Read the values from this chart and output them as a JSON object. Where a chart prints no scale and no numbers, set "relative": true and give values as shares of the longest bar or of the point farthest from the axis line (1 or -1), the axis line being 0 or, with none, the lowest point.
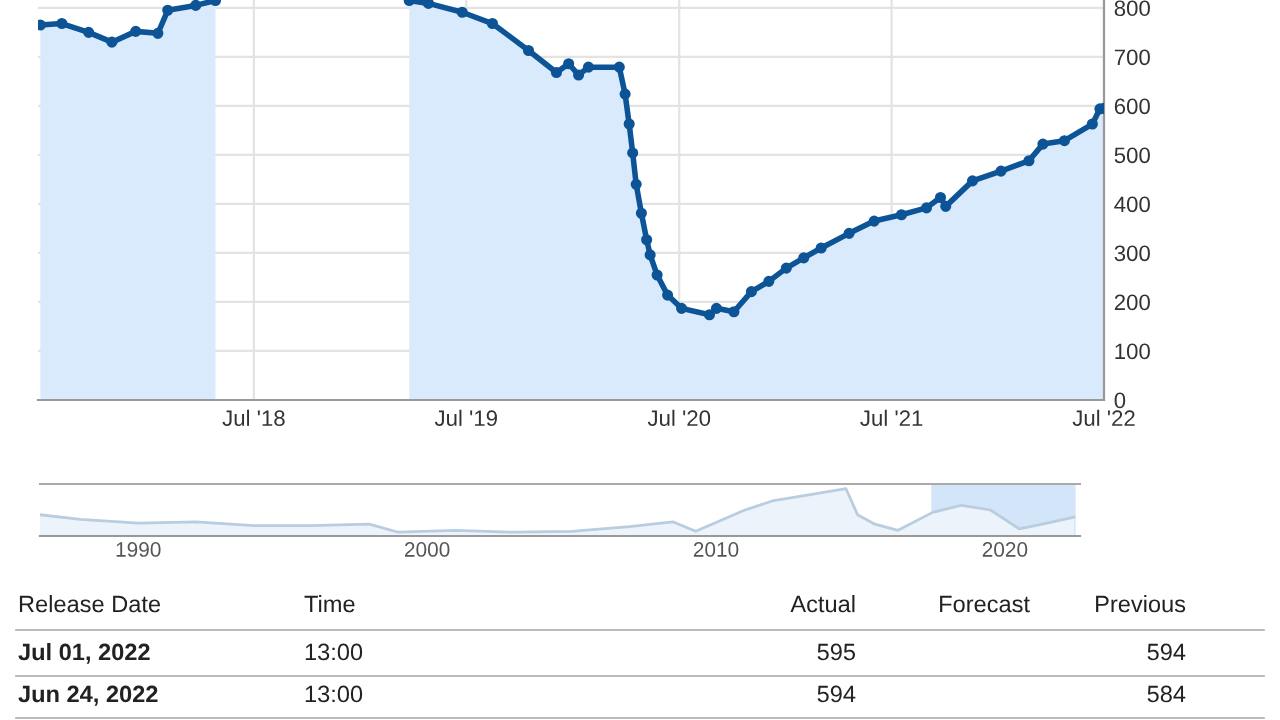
{
  "chart_data": [
    {
      "type": "area",
      "x": [
        "2017-06-29",
        "2017-08-05",
        "2017-09-20",
        "2017-10-30",
        "2017-12-10",
        "2018-01-17",
        "2018-02-03",
        "2018-03-23",
        "2018-04-26",
        "2018-11-01",
        "2019-03-25",
        "2019-04-27",
        "2019-06-24",
        "2019-08-15",
        "2019-10-16",
        "2019-12-03",
        "2019-12-24",
        "2020-01-10",
        "2020-01-27",
        "2020-03-20",
        "2020-03-30",
        "2020-04-06",
        "2020-04-12",
        "2020-04-18",
        "2020-04-27",
        "2020-05-06",
        "2020-05-12",
        "2020-05-24",
        "2020-06-11",
        "2020-07-05",
        "2020-08-22",
        "2020-09-03",
        "2020-10-03",
        "2020-11-02",
        "2020-12-02",
        "2021-01-01",
        "2021-01-31",
        "2021-03-02",
        "2021-04-19",
        "2021-06-01",
        "2021-07-18",
        "2021-08-30",
        "2021-09-23",
        "2021-10-02",
        "2021-11-17",
        "2022-01-05",
        "2022-02-22",
        "2022-03-18",
        "2022-04-24",
        "2022-06-11",
        "2022-06-24",
        "2022-07-01"
      ],
      "series": [
        {
          "color": "#0d5497",
          "values": [
            765,
            768,
            750,
            730,
            752,
            748,
            795,
            805,
            815,
            null,
            815,
            809,
            791,
            768,
            713,
            668,
            686,
            663,
            679,
            679,
            624,
            563,
            504,
            440,
            381,
            327,
            296,
            255,
            214,
            187,
            174,
            187,
            180,
            221,
            242,
            269,
            290,
            310,
            340,
            365,
            378,
            392,
            413,
            395,
            447,
            467,
            488,
            522,
            529,
            563,
            594,
            595
          ]
        }
      ],
      "xlim": [
        "2017-06-25",
        "2022-07-01"
      ],
      "xticks": [
        {
          "value": "2018-07-01",
          "label": "Jul '18"
        },
        {
          "value": "2019-07-01",
          "label": "Jul '19"
        },
        {
          "value": "2020-07-01",
          "label": "Jul '20"
        },
        {
          "value": "2021-07-01",
          "label": "Jul '21"
        },
        {
          "value": "2022-07-01",
          "label": "Jul '22"
        }
      ],
      "ylim": [
        0,
        816
      ],
      "yticks": [
        0,
        100,
        200,
        300,
        400,
        500,
        600,
        700,
        800
      ],
      "grid": true,
      "marker": "circle",
      "annotations": [
        "Release Date",
        "Time",
        "Actual",
        "Forecast",
        "Previous",
        "Jul 01, 2022",
        "13:00",
        "595",
        "594",
        "Jun 24, 2022",
        "13:00",
        "594",
        "584"
      ]
    },
    {
      "type": "area",
      "relative": true,
      "x": [
        1986.6,
        1988,
        1990,
        1992,
        1994,
        1996,
        1998,
        1999,
        2001,
        2003,
        2005,
        2007,
        2008.5,
        2009.3,
        2011,
        2012,
        2013,
        2014.5,
        2014.9,
        2015.5,
        2016.3,
        2017.5,
        2018.5,
        2019.5,
        2020.5,
        2021.3,
        2022.4
      ],
      "series": [
        {
          "color": "#b8cde0",
          "values": [
            0.45,
            0.35,
            0.27,
            0.3,
            0.22,
            0.22,
            0.25,
            0.08,
            0.12,
            0.08,
            0.1,
            0.2,
            0.3,
            0.1,
            0.55,
            0.75,
            0.85,
            1.0,
            0.45,
            0.25,
            0.12,
            0.5,
            0.65,
            0.55,
            0.15,
            0.25,
            0.4
          ]
        }
      ],
      "xlim": [
        1986.6,
        2022.6
      ],
      "xticks": [
        1990,
        2000,
        2010,
        2020
      ],
      "bands": [
        {
          "axis": "x",
          "from": 2017.5,
          "to": 2022.4,
          "color": "#d3e5f8"
        }
      ]
    }
  ]
}
